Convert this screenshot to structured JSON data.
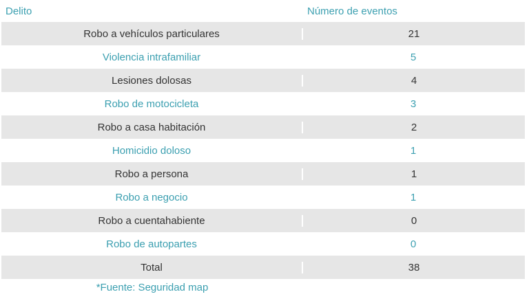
{
  "table": {
    "headers": [
      "Delito",
      "Número de eventos"
    ],
    "rows": [
      {
        "delito": "Robo a vehículos particulares",
        "eventos": "21"
      },
      {
        "delito": "Violencia intrafamiliar",
        "eventos": "5"
      },
      {
        "delito": "Lesiones dolosas",
        "eventos": "4"
      },
      {
        "delito": "Robo de motocicleta",
        "eventos": "3"
      },
      {
        "delito": "Robo a casa habitación",
        "eventos": "2"
      },
      {
        "delito": "Homicidio doloso",
        "eventos": "1"
      },
      {
        "delito": "Robo a persona",
        "eventos": "1"
      },
      {
        "delito": "Robo a negocio",
        "eventos": "1"
      },
      {
        "delito": "Robo a cuentahabiente",
        "eventos": "0"
      },
      {
        "delito": "Robo de autopartes",
        "eventos": "0"
      }
    ],
    "total": {
      "label": "Total",
      "value": "38"
    }
  },
  "source_note": "*Fuente: Seguridad map",
  "colors": {
    "accent": "#3b9fb0",
    "shaded_row": "#e6e6e6",
    "dark_text": "#333333"
  }
}
